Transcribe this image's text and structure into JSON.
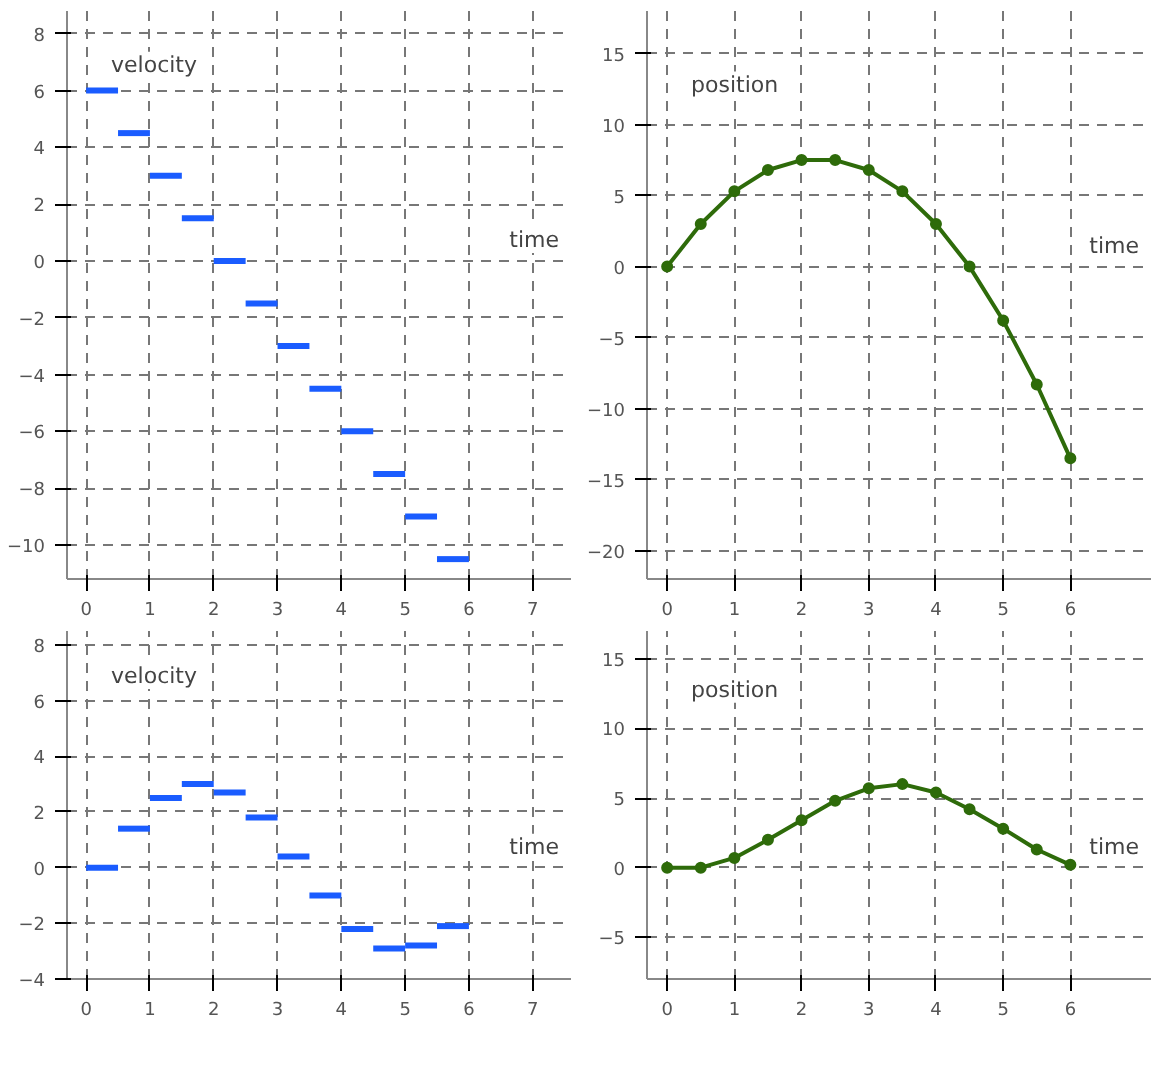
{
  "chart_data": [
    {
      "type": "step",
      "xlabel": "time",
      "ylabel": "velocity",
      "x": [
        0,
        0.5,
        1,
        1.5,
        2,
        2.5,
        3,
        3.5,
        4,
        4.5,
        5,
        5.5,
        6
      ],
      "values": [
        6,
        4.5,
        3,
        1.5,
        0,
        -1.5,
        -3,
        -4.5,
        -6,
        -7.5,
        -9,
        -10.5,
        -10.5
      ],
      "color": "#1a5cff",
      "xlim": [
        -0.3,
        7.6
      ],
      "ylim": [
        -11.2,
        8.8
      ],
      "xticks": [
        0,
        1,
        2,
        3,
        4,
        5,
        6,
        7
      ],
      "yticks": [
        -10,
        -8,
        -6,
        -4,
        -2,
        0,
        2,
        4,
        6,
        8
      ],
      "grid": true
    },
    {
      "type": "line",
      "xlabel": "time",
      "ylabel": "position",
      "x": [
        0,
        0.5,
        1,
        1.5,
        2,
        2.5,
        3,
        3.5,
        4,
        4.5,
        5,
        5.5,
        6
      ],
      "values": [
        0,
        3,
        5.3,
        6.8,
        7.5,
        7.5,
        6.8,
        5.3,
        3,
        0,
        -3.8,
        -8.3,
        -13.5
      ],
      "color": "#2e6b0a",
      "marker": "circle",
      "xlim": [
        -0.3,
        7.2
      ],
      "ylim": [
        -22,
        18
      ],
      "xticks": [
        0,
        1,
        2,
        3,
        4,
        5,
        6
      ],
      "yticks": [
        -20,
        -15,
        -10,
        -5,
        0,
        5,
        10,
        15
      ],
      "grid": true
    },
    {
      "type": "step",
      "xlabel": "time",
      "ylabel": "velocity",
      "x": [
        0,
        0.5,
        1,
        1.5,
        2,
        2.5,
        3,
        3.5,
        4,
        4.5,
        5,
        5.5,
        6
      ],
      "values": [
        0,
        1.4,
        2.5,
        3,
        2.7,
        1.8,
        0.4,
        -1,
        -2.2,
        -2.9,
        -2.8,
        -2.1,
        -2.1
      ],
      "color": "#1a5cff",
      "xlim": [
        -0.3,
        7.6
      ],
      "ylim": [
        -4,
        8.5
      ],
      "xticks": [
        0,
        1,
        2,
        3,
        4,
        5,
        6,
        7
      ],
      "yticks": [
        -4,
        -2,
        0,
        2,
        4,
        6,
        8
      ],
      "grid": true
    },
    {
      "type": "line",
      "xlabel": "time",
      "ylabel": "position",
      "x": [
        0,
        0.5,
        1,
        1.5,
        2,
        2.5,
        3,
        3.5,
        4,
        4.5,
        5,
        5.5,
        6
      ],
      "values": [
        0,
        0,
        0.7,
        2,
        3.4,
        4.8,
        5.7,
        6,
        5.4,
        4.2,
        2.8,
        1.3,
        0.2
      ],
      "color": "#2e6b0a",
      "marker": "circle",
      "xlim": [
        -0.3,
        7.2
      ],
      "ylim": [
        -8,
        17
      ],
      "xticks": [
        0,
        1,
        2,
        3,
        4,
        5,
        6
      ],
      "yticks": [
        -5,
        0,
        5,
        10,
        15
      ],
      "grid": true
    }
  ]
}
